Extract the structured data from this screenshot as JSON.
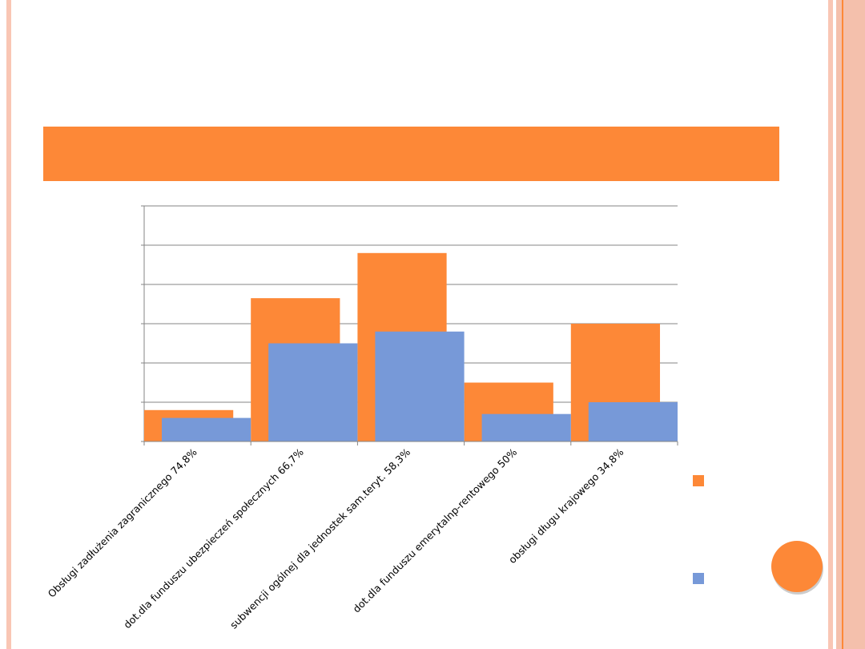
{
  "chart_data": {
    "type": "bar",
    "categories": [
      "Obsługi zadłużenia zagranicznego 74,8%",
      "dot.dla funduszu ubezpieczeń społecznych 66,7%",
      "subwencji ogólnej dla jednostek sam.teryt. 58,3%",
      "dot.dla funduszu emerytalnp-rentowego 50%",
      "obsługi długu krajowego 34,8%"
    ],
    "series": [
      {
        "color": "#fd8837",
        "values": [
          0.8,
          3.65,
          4.8,
          1.5,
          3.0
        ]
      },
      {
        "color": "#7799d8",
        "values": [
          0.6,
          2.5,
          2.8,
          0.7,
          1.0
        ]
      }
    ],
    "ylim": [
      0,
      6
    ],
    "yticks": [
      0,
      1,
      2,
      3,
      4,
      5,
      6
    ],
    "ytick_labels": false,
    "grid": true
  }
}
